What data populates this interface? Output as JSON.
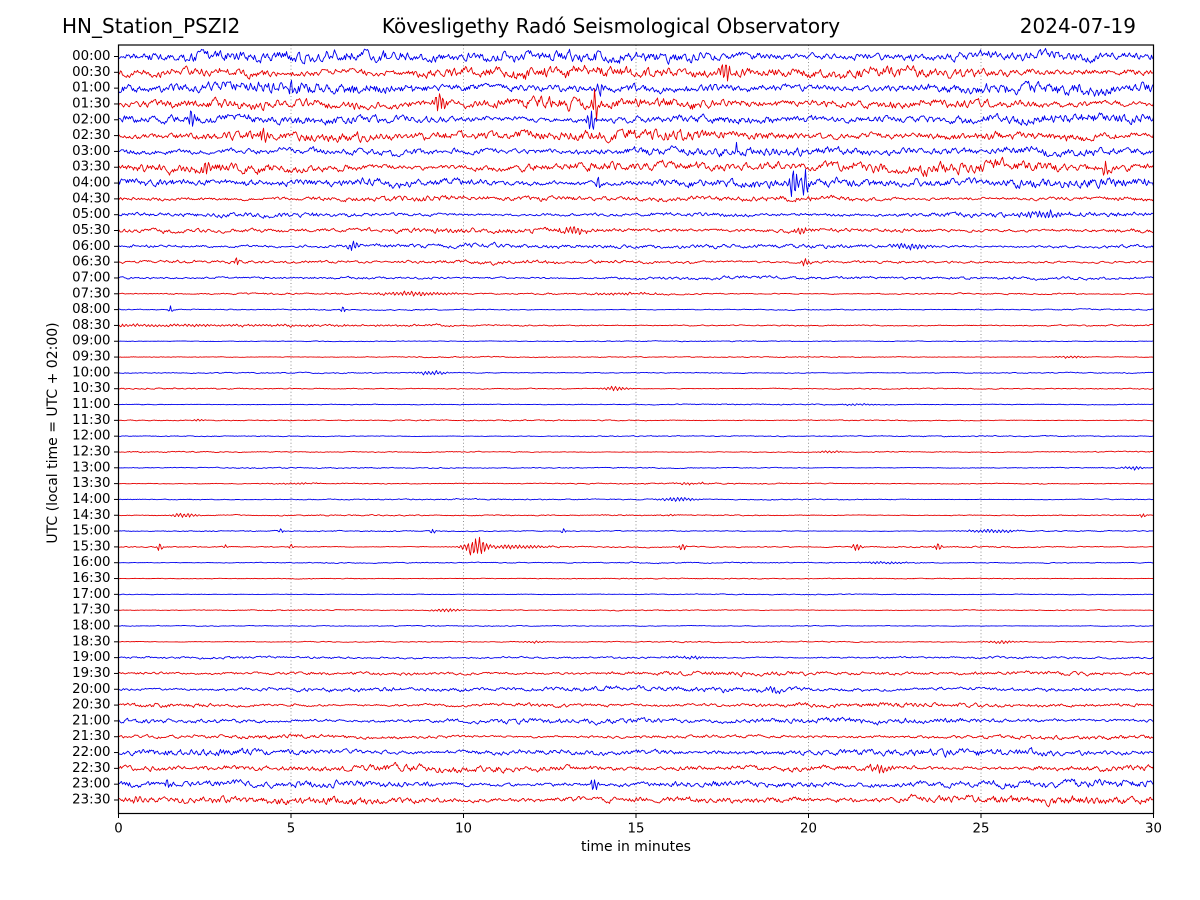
{
  "header": {
    "station": "HN_Station_PSZI2",
    "observatory": "Kövesligethy Radó Seismological Observatory",
    "date": "2024-07-19"
  },
  "axes": {
    "xlabel": "time in minutes",
    "ylabel": "UTC (local time = UTC + 02:00)",
    "x_ticks": [
      "0",
      "5",
      "10",
      "15",
      "20",
      "25",
      "30"
    ],
    "x_range": [
      0,
      30
    ],
    "gridline_minutes": [
      5,
      10,
      15,
      20,
      25
    ],
    "grid_style": "dotted"
  },
  "colors": {
    "trace_blue": "#0000ee",
    "trace_red": "#e60000",
    "grid": "#777777",
    "frame": "#000000",
    "background": "#ffffff"
  },
  "chart_data": {
    "type": "line",
    "subtype": "helicorder-dayplot",
    "title": "Kövesligethy Radó Seismological Observatory",
    "station": "HN_Station_PSZI2",
    "date": "2024-07-19",
    "xlabel": "time in minutes",
    "ylabel": "UTC (local time = UTC + 02:00)",
    "x_range": [
      0,
      30
    ],
    "x_ticks": [
      0,
      5,
      10,
      15,
      20,
      25,
      30
    ],
    "minutes_per_row": 30,
    "legend": "none",
    "grid": "vertical-dotted-at-5min",
    "rows": [
      {
        "label": "00:00",
        "color": "blue",
        "amp": 5.2,
        "events": []
      },
      {
        "label": "00:30",
        "color": "red",
        "amp": 5.2,
        "events": [
          [
            17.6,
            9,
            0.12
          ]
        ]
      },
      {
        "label": "01:00",
        "color": "blue",
        "amp": 4.8,
        "events": [
          [
            5.0,
            7,
            0.08
          ],
          [
            14.0,
            7,
            0.1
          ]
        ]
      },
      {
        "label": "01:30",
        "color": "red",
        "amp": 4.8,
        "events": [
          [
            9.3,
            10,
            0.1
          ],
          [
            13.8,
            15,
            0.07
          ]
        ]
      },
      {
        "label": "02:00",
        "color": "blue",
        "amp": 4.2,
        "events": [
          [
            2.1,
            13,
            0.06
          ],
          [
            13.7,
            9,
            0.1
          ]
        ]
      },
      {
        "label": "02:30",
        "color": "red",
        "amp": 4.8,
        "events": [
          [
            4.2,
            9,
            0.08
          ]
        ]
      },
      {
        "label": "03:00",
        "color": "blue",
        "amp": 3.8,
        "events": [
          [
            17.9,
            8,
            0.06
          ]
        ]
      },
      {
        "label": "03:30",
        "color": "red",
        "amp": 4.6,
        "events": [
          [
            2.5,
            8,
            0.1
          ],
          [
            28.6,
            7,
            0.08
          ]
        ]
      },
      {
        "label": "04:00",
        "color": "blue",
        "amp": 4.2,
        "events": [
          [
            13.9,
            8,
            0.06
          ],
          [
            19.55,
            19,
            0.07
          ],
          [
            19.9,
            17,
            0.06
          ]
        ]
      },
      {
        "label": "04:30",
        "color": "red",
        "amp": 2.4,
        "events": []
      },
      {
        "label": "05:00",
        "color": "blue",
        "amp": 2.0,
        "events": [
          [
            26.8,
            3.5,
            0.5
          ]
        ]
      },
      {
        "label": "05:30",
        "color": "red",
        "amp": 2.1,
        "events": [
          [
            13.2,
            4,
            0.25
          ],
          [
            19.8,
            4,
            0.15
          ]
        ]
      },
      {
        "label": "06:00",
        "color": "blue",
        "amp": 1.9,
        "events": [
          [
            6.8,
            5,
            0.12
          ],
          [
            23.0,
            3,
            0.4
          ]
        ]
      },
      {
        "label": "06:30",
        "color": "red",
        "amp": 1.5,
        "events": [
          [
            3.4,
            5,
            0.06
          ],
          [
            19.9,
            4,
            0.1
          ]
        ]
      },
      {
        "label": "07:00",
        "color": "blue",
        "amp": 1.3,
        "events": []
      },
      {
        "label": "07:30",
        "color": "red",
        "amp": 0.75,
        "events": [
          [
            8.6,
            2.2,
            0.8
          ],
          [
            14.6,
            1.4,
            0.7
          ]
        ]
      },
      {
        "label": "08:00",
        "color": "blue",
        "amp": 0.5,
        "events": [
          [
            1.5,
            5,
            0.04
          ],
          [
            6.5,
            5,
            0.04
          ]
        ]
      },
      {
        "label": "08:30",
        "color": "red",
        "amp": 0.7,
        "events": [
          [
            0,
            1.1,
            7
          ]
        ]
      },
      {
        "label": "09:00",
        "color": "blue",
        "amp": 0.4,
        "events": []
      },
      {
        "label": "09:30",
        "color": "red",
        "amp": 0.45,
        "events": [
          [
            27.6,
            1.4,
            0.3
          ]
        ]
      },
      {
        "label": "10:00",
        "color": "blue",
        "amp": 0.5,
        "events": [
          [
            9.1,
            2.4,
            0.3
          ]
        ]
      },
      {
        "label": "10:30",
        "color": "red",
        "amp": 0.5,
        "events": [
          [
            14.4,
            2.4,
            0.25
          ]
        ]
      },
      {
        "label": "11:00",
        "color": "blue",
        "amp": 0.45,
        "events": [
          [
            21.5,
            0.9,
            0.4
          ]
        ]
      },
      {
        "label": "11:30",
        "color": "red",
        "amp": 0.5,
        "events": [
          [
            2.3,
            1.8,
            0.1
          ]
        ]
      },
      {
        "label": "12:00",
        "color": "blue",
        "amp": 0.45,
        "events": []
      },
      {
        "label": "12:30",
        "color": "red",
        "amp": 0.5,
        "events": [
          [
            20.6,
            1.1,
            0.25
          ]
        ]
      },
      {
        "label": "13:00",
        "color": "blue",
        "amp": 0.5,
        "events": [
          [
            29.4,
            2.2,
            0.2
          ]
        ]
      },
      {
        "label": "13:30",
        "color": "red",
        "amp": 0.5,
        "events": [
          [
            5.2,
            0.9,
            0.4
          ],
          [
            16.6,
            1.4,
            0.3
          ]
        ]
      },
      {
        "label": "14:00",
        "color": "blue",
        "amp": 0.5,
        "events": [
          [
            16.2,
            2.2,
            0.35
          ]
        ]
      },
      {
        "label": "14:30",
        "color": "red",
        "amp": 0.55,
        "events": [
          [
            1.9,
            2.8,
            0.25
          ],
          [
            16.0,
            1.4,
            0.08
          ],
          [
            29.7,
            2.4,
            0.08
          ]
        ]
      },
      {
        "label": "15:00",
        "color": "blue",
        "amp": 0.5,
        "events": [
          [
            4.7,
            2.8,
            0.05
          ],
          [
            9.1,
            3.2,
            0.05
          ],
          [
            12.9,
            3.2,
            0.05
          ],
          [
            25.3,
            1.8,
            0.5
          ]
        ]
      },
      {
        "label": "15:30",
        "color": "red",
        "amp": 0.55,
        "events": [
          [
            1.2,
            4.5,
            0.06
          ],
          [
            3.1,
            2.8,
            0.05
          ],
          [
            5.0,
            3.8,
            0.05
          ],
          [
            10.35,
            8.5,
            0.22
          ],
          [
            11.3,
            2,
            0.9
          ],
          [
            16.35,
            4.5,
            0.07
          ],
          [
            21.4,
            4.5,
            0.08
          ],
          [
            23.75,
            5,
            0.08
          ]
        ]
      },
      {
        "label": "16:00",
        "color": "blue",
        "amp": 0.5,
        "events": [
          [
            22.3,
            1.3,
            0.5
          ]
        ]
      },
      {
        "label": "16:30",
        "color": "red",
        "amp": 0.4,
        "events": []
      },
      {
        "label": "17:00",
        "color": "blue",
        "amp": 0.4,
        "events": []
      },
      {
        "label": "17:30",
        "color": "red",
        "amp": 0.45,
        "events": [
          [
            9.5,
            1.8,
            0.25
          ]
        ]
      },
      {
        "label": "18:00",
        "color": "blue",
        "amp": 0.4,
        "events": []
      },
      {
        "label": "18:30",
        "color": "red",
        "amp": 0.5,
        "events": [
          [
            12.0,
            0.9,
            0.3
          ],
          [
            25.6,
            1.7,
            0.3
          ]
        ]
      },
      {
        "label": "19:00",
        "color": "blue",
        "amp": 0.95,
        "events": [
          [
            16.5,
            1.8,
            0.4
          ]
        ]
      },
      {
        "label": "19:30",
        "color": "red",
        "amp": 1.7,
        "events": []
      },
      {
        "label": "20:00",
        "color": "blue",
        "amp": 2.1,
        "events": [
          [
            19.0,
            3.5,
            0.2
          ]
        ]
      },
      {
        "label": "20:30",
        "color": "red",
        "amp": 1.9,
        "events": []
      },
      {
        "label": "21:00",
        "color": "blue",
        "amp": 2.3,
        "events": []
      },
      {
        "label": "21:30",
        "color": "red",
        "amp": 1.7,
        "events": []
      },
      {
        "label": "22:00",
        "color": "blue",
        "amp": 2.9,
        "events": []
      },
      {
        "label": "22:30",
        "color": "red",
        "amp": 2.9,
        "events": [
          [
            22.0,
            4.5,
            0.3
          ]
        ]
      },
      {
        "label": "23:00",
        "color": "blue",
        "amp": 3.1,
        "events": [
          [
            1.4,
            5,
            0.06
          ],
          [
            13.8,
            7.5,
            0.08
          ]
        ]
      },
      {
        "label": "23:30",
        "color": "red",
        "amp": 3.4,
        "events": [
          [
            0.5,
            6,
            0.07
          ]
        ]
      }
    ],
    "events_format": "[minute, amplitude_px, sigma_minutes]"
  }
}
